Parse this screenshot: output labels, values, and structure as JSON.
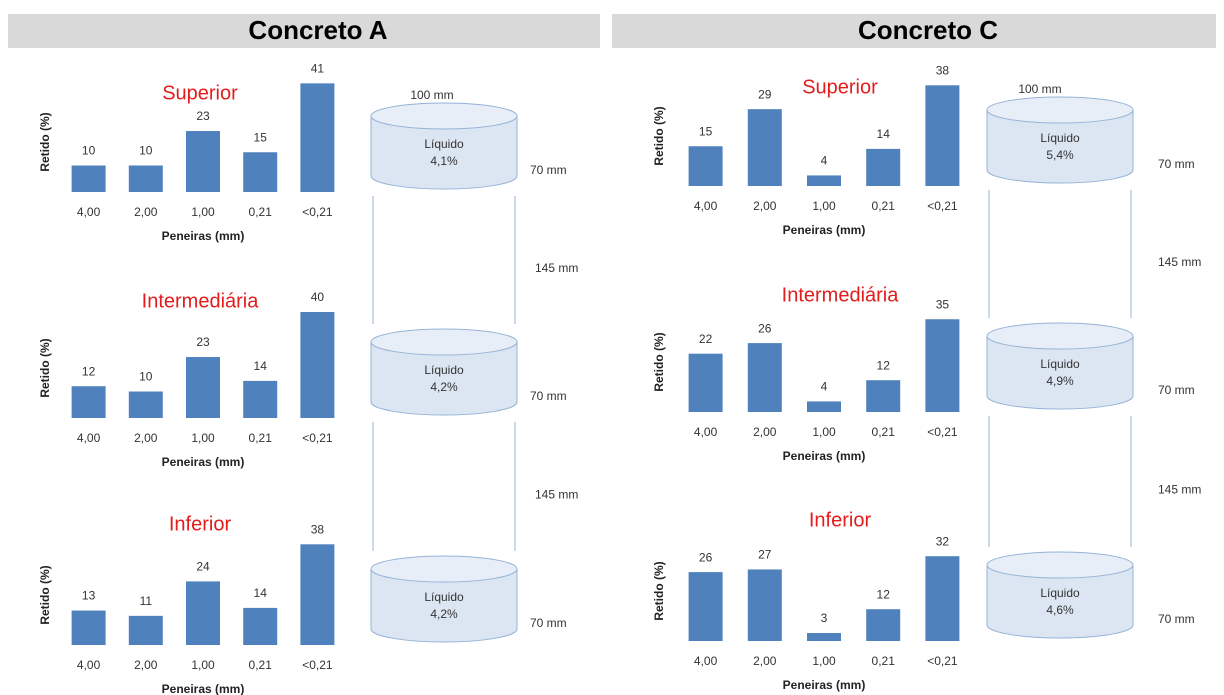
{
  "panels": [
    {
      "title": "Concreto A",
      "diameter": "100 mm",
      "spacings": [
        "145 mm",
        "145 mm"
      ]
    },
    {
      "title": "Concreto C",
      "diameter": "100 mm",
      "spacings": [
        "145 mm",
        "145 mm"
      ]
    }
  ],
  "chart_data": [
    {
      "type": "bar",
      "title": "Superior",
      "xlabel": "Peneiras (mm)",
      "ylabel": "Retido (%)",
      "color": "#4f81bd",
      "categories": [
        "4,00",
        "2,00",
        "1,00",
        "0,21",
        "<0,21"
      ],
      "values": [
        10,
        10,
        23,
        15,
        41
      ],
      "sample": {
        "label": "Líquido",
        "value": "4,1%",
        "height": "70 mm"
      }
    },
    {
      "type": "bar",
      "title": "Intermediária",
      "xlabel": "Peneiras (mm)",
      "ylabel": "Retido (%)",
      "color": "#4f81bd",
      "categories": [
        "4,00",
        "2,00",
        "1,00",
        "0,21",
        "<0,21"
      ],
      "values": [
        12,
        10,
        23,
        14,
        40
      ],
      "sample": {
        "label": "Líquido",
        "value": "4,2%",
        "height": "70 mm"
      }
    },
    {
      "type": "bar",
      "title": "Inferior",
      "xlabel": "Peneiras (mm)",
      "ylabel": "Retido (%)",
      "color": "#4f81bd",
      "categories": [
        "4,00",
        "2,00",
        "1,00",
        "0,21",
        "<0,21"
      ],
      "values": [
        13,
        11,
        24,
        14,
        38
      ],
      "sample": {
        "label": "Líquido",
        "value": "4,2%",
        "height": "70 mm"
      }
    },
    {
      "type": "bar",
      "title": "Superior",
      "xlabel": "Peneiras (mm)",
      "ylabel": "Retido (%)",
      "color": "#4f81bd",
      "categories": [
        "4,00",
        "2,00",
        "1,00",
        "0,21",
        "<0,21"
      ],
      "values": [
        15,
        29,
        4,
        14,
        38
      ],
      "sample": {
        "label": "Líquido",
        "value": "5,4%",
        "height": "70 mm"
      }
    },
    {
      "type": "bar",
      "title": "Intermediária",
      "xlabel": "Peneiras (mm)",
      "ylabel": "Retido (%)",
      "color": "#4f81bd",
      "categories": [
        "4,00",
        "2,00",
        "1,00",
        "0,21",
        "<0,21"
      ],
      "values": [
        22,
        26,
        4,
        12,
        35
      ],
      "sample": {
        "label": "Líquido",
        "value": "4,9%",
        "height": "70 mm"
      }
    },
    {
      "type": "bar",
      "title": "Inferior",
      "xlabel": "Peneiras (mm)",
      "ylabel": "Retido (%)",
      "color": "#4f81bd",
      "categories": [
        "4,00",
        "2,00",
        "1,00",
        "0,21",
        "<0,21"
      ],
      "values": [
        26,
        27,
        3,
        12,
        32
      ],
      "sample": {
        "label": "Líquido",
        "value": "4,6%",
        "height": "70 mm"
      }
    }
  ]
}
